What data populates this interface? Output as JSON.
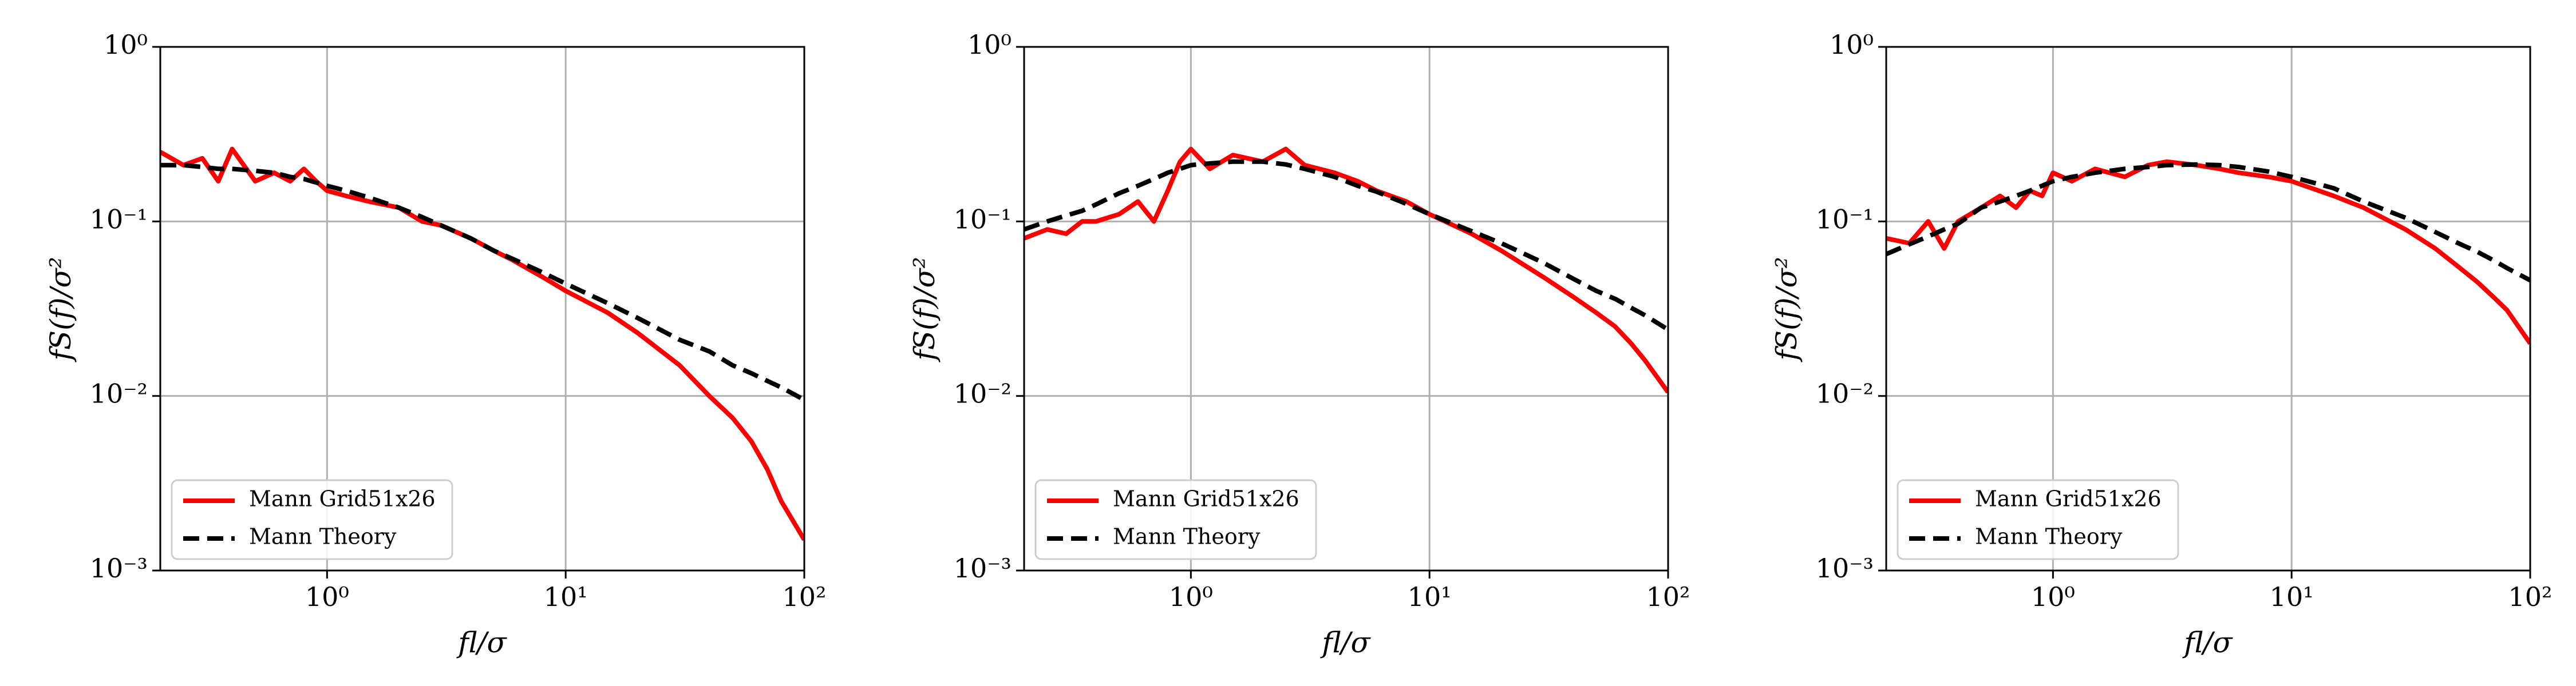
{
  "chart_data": [
    {
      "type": "line",
      "xscale": "log",
      "yscale": "log",
      "grid": true,
      "legend": "lower left",
      "xlabel": "fl/σ",
      "ylabel": "fS(f)/σ²",
      "xlim": [
        0.2,
        100
      ],
      "ylim": [
        0.001,
        1
      ],
      "xticks": [
        {
          "value": 1,
          "label": "10⁰"
        },
        {
          "value": 10,
          "label": "10¹"
        },
        {
          "value": 100,
          "label": "10²"
        }
      ],
      "yticks": [
        {
          "value": 0.001,
          "label": "10⁻³"
        },
        {
          "value": 0.01,
          "label": "10⁻²"
        },
        {
          "value": 0.1,
          "label": "10⁻¹"
        },
        {
          "value": 1,
          "label": "10⁰"
        }
      ],
      "x": [
        0.2,
        0.25,
        0.3,
        0.35,
        0.4,
        0.5,
        0.6,
        0.7,
        0.8,
        0.9,
        1,
        1.2,
        1.5,
        2,
        2.5,
        3,
        4,
        5,
        6,
        8,
        10,
        15,
        20,
        30,
        40,
        50,
        60,
        70,
        80,
        100
      ],
      "series": [
        {
          "name": "Mann Grid51x26",
          "color": "#ff0000",
          "dash": false,
          "values": [
            0.25,
            0.21,
            0.23,
            0.17,
            0.26,
            0.17,
            0.19,
            0.17,
            0.2,
            0.17,
            0.15,
            0.14,
            0.13,
            0.12,
            0.1,
            0.095,
            0.08,
            0.068,
            0.06,
            0.048,
            0.04,
            0.03,
            0.023,
            0.015,
            0.01,
            0.0075,
            0.0055,
            0.0038,
            0.0025,
            0.0015
          ]
        },
        {
          "name": "Mann Theory",
          "color": "#000000",
          "dash": true,
          "values": [
            0.21,
            0.21,
            0.205,
            0.2,
            0.2,
            0.195,
            0.19,
            0.18,
            0.175,
            0.167,
            0.16,
            0.15,
            0.137,
            0.12,
            0.106,
            0.095,
            0.08,
            0.068,
            0.061,
            0.051,
            0.044,
            0.034,
            0.028,
            0.021,
            0.018,
            0.015,
            0.0135,
            0.0122,
            0.0112,
            0.0095
          ]
        }
      ]
    },
    {
      "type": "line",
      "xscale": "log",
      "yscale": "log",
      "grid": true,
      "legend": "lower left",
      "xlabel": "fl/σ",
      "ylabel": "fS(f)/σ²",
      "xlim": [
        0.2,
        100
      ],
      "ylim": [
        0.001,
        1
      ],
      "xticks": [
        {
          "value": 1,
          "label": "10⁰"
        },
        {
          "value": 10,
          "label": "10¹"
        },
        {
          "value": 100,
          "label": "10²"
        }
      ],
      "yticks": [
        {
          "value": 0.001,
          "label": "10⁻³"
        },
        {
          "value": 0.01,
          "label": "10⁻²"
        },
        {
          "value": 0.1,
          "label": "10⁻¹"
        },
        {
          "value": 1,
          "label": "10⁰"
        }
      ],
      "x": [
        0.2,
        0.25,
        0.3,
        0.35,
        0.4,
        0.5,
        0.6,
        0.7,
        0.8,
        0.9,
        1,
        1.2,
        1.5,
        2,
        2.5,
        3,
        4,
        5,
        6,
        8,
        10,
        15,
        20,
        30,
        40,
        50,
        60,
        70,
        80,
        100
      ],
      "series": [
        {
          "name": "Mann Grid51x26",
          "color": "#ff0000",
          "dash": false,
          "values": [
            0.08,
            0.09,
            0.085,
            0.1,
            0.1,
            0.11,
            0.13,
            0.1,
            0.15,
            0.22,
            0.26,
            0.2,
            0.24,
            0.22,
            0.26,
            0.21,
            0.19,
            0.17,
            0.15,
            0.13,
            0.11,
            0.085,
            0.068,
            0.048,
            0.037,
            0.03,
            0.025,
            0.02,
            0.016,
            0.0105
          ]
        },
        {
          "name": "Mann Theory",
          "color": "#000000",
          "dash": true,
          "values": [
            0.09,
            0.1,
            0.108,
            0.115,
            0.125,
            0.145,
            0.16,
            0.175,
            0.19,
            0.2,
            0.21,
            0.215,
            0.22,
            0.22,
            0.212,
            0.2,
            0.18,
            0.16,
            0.148,
            0.126,
            0.11,
            0.088,
            0.075,
            0.058,
            0.047,
            0.04,
            0.036,
            0.032,
            0.029,
            0.024
          ]
        }
      ]
    },
    {
      "type": "line",
      "xscale": "log",
      "yscale": "log",
      "grid": true,
      "legend": "lower left",
      "xlabel": "fl/σ",
      "ylabel": "fS(f)/σ²",
      "xlim": [
        0.2,
        100
      ],
      "ylim": [
        0.001,
        1
      ],
      "xticks": [
        {
          "value": 1,
          "label": "10⁰"
        },
        {
          "value": 10,
          "label": "10¹"
        },
        {
          "value": 100,
          "label": "10²"
        }
      ],
      "yticks": [
        {
          "value": 0.001,
          "label": "10⁻³"
        },
        {
          "value": 0.01,
          "label": "10⁻²"
        },
        {
          "value": 0.1,
          "label": "10⁻¹"
        },
        {
          "value": 1,
          "label": "10⁰"
        }
      ],
      "x": [
        0.2,
        0.25,
        0.3,
        0.35,
        0.4,
        0.5,
        0.6,
        0.7,
        0.8,
        0.9,
        1,
        1.2,
        1.5,
        2,
        2.5,
        3,
        4,
        5,
        6,
        8,
        10,
        15,
        20,
        30,
        40,
        50,
        60,
        70,
        80,
        100
      ],
      "series": [
        {
          "name": "Mann Grid51x26",
          "color": "#ff0000",
          "dash": false,
          "values": [
            0.08,
            0.075,
            0.1,
            0.07,
            0.1,
            0.12,
            0.14,
            0.12,
            0.15,
            0.14,
            0.19,
            0.17,
            0.2,
            0.18,
            0.21,
            0.22,
            0.21,
            0.2,
            0.19,
            0.18,
            0.17,
            0.14,
            0.12,
            0.09,
            0.07,
            0.055,
            0.045,
            0.037,
            0.031,
            0.02
          ]
        },
        {
          "name": "Mann Theory",
          "color": "#000000",
          "dash": true,
          "values": [
            0.065,
            0.074,
            0.082,
            0.09,
            0.097,
            0.12,
            0.13,
            0.14,
            0.15,
            0.16,
            0.17,
            0.18,
            0.19,
            0.2,
            0.205,
            0.21,
            0.212,
            0.21,
            0.205,
            0.193,
            0.18,
            0.155,
            0.13,
            0.105,
            0.087,
            0.075,
            0.067,
            0.06,
            0.054,
            0.046
          ]
        }
      ]
    }
  ]
}
